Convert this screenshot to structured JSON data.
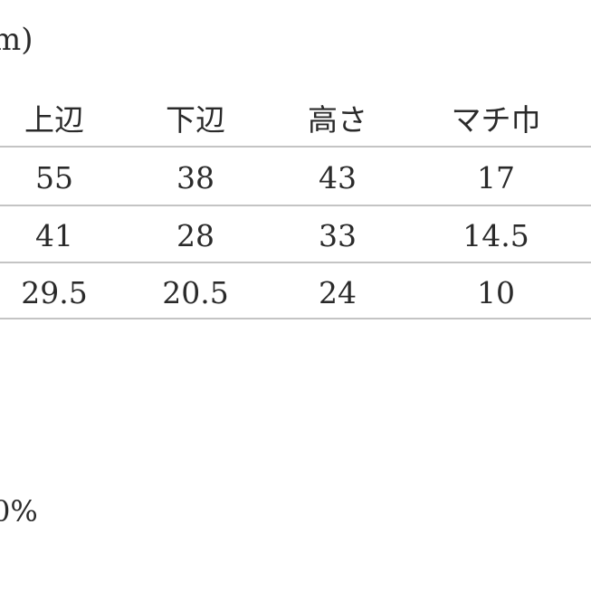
{
  "unit_label": "m)",
  "table": {
    "headers": [
      "上辺",
      "下辺",
      "高さ",
      "マチ巾"
    ],
    "rows": [
      [
        "55",
        "38",
        "43",
        "17"
      ],
      [
        "41",
        "28",
        "33",
        "14.5"
      ],
      [
        "29.5",
        "20.5",
        "24",
        "10"
      ]
    ]
  },
  "footnote": "0%"
}
